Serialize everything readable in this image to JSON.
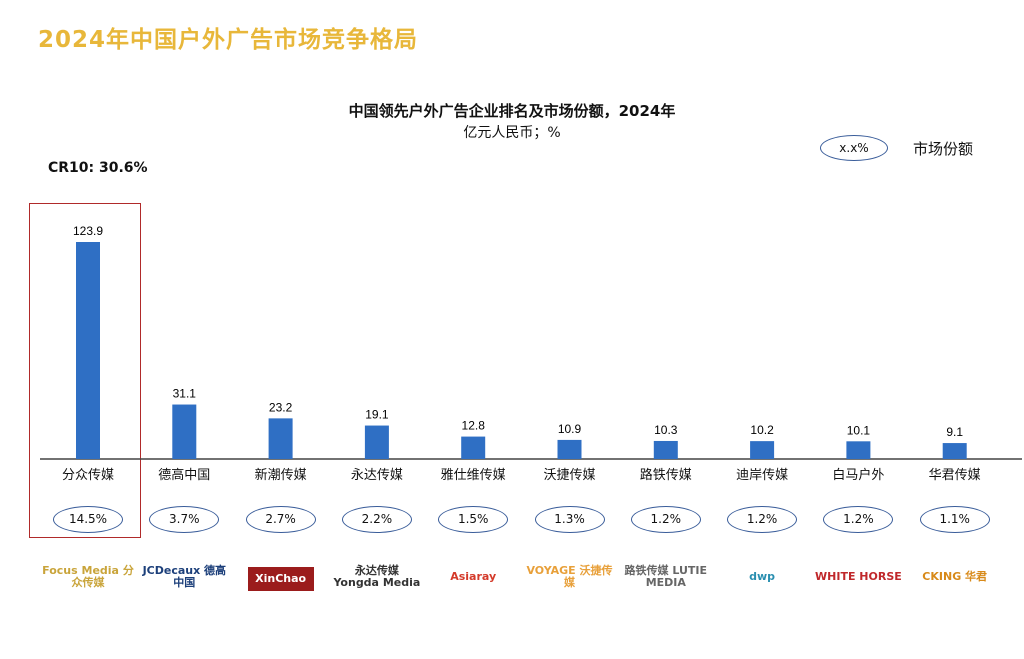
{
  "page_title": "2024年中国户外广告市场竞争格局",
  "legend": {
    "sample": "x.x%",
    "label": "市场份额"
  },
  "cr10": "CR10: 30.6%",
  "colors": {
    "bar": "#2f6fc4",
    "title": "#e8b73a",
    "highlight": "#b02a2a",
    "ellipse": "#3a5d9a"
  },
  "chart_data": {
    "type": "bar",
    "title": "中国领先户外广告企业排名及市场份额，2024年",
    "subtitle": "亿元人民币；%",
    "categories": [
      "分众传媒",
      "德高中国",
      "新潮传媒",
      "永达传媒",
      "雅仕维传媒",
      "沃捷传媒",
      "路铁传媒",
      "迪岸传媒",
      "白马户外",
      "华君传媒"
    ],
    "values": [
      123.9,
      31.1,
      23.2,
      19.1,
      12.8,
      10.9,
      10.3,
      10.2,
      10.1,
      9.1
    ],
    "value_labels": [
      "123.9",
      "31.1",
      "23.2",
      "19.1",
      "12.8",
      "10.9",
      "10.3",
      "10.2",
      "10.1",
      "9.1"
    ],
    "market_share": [
      "14.5%",
      "3.7%",
      "2.7%",
      "2.2%",
      "1.5%",
      "1.3%",
      "1.2%",
      "1.2%",
      "1.2%",
      "1.1%"
    ],
    "highlighted_category": "分众传媒",
    "grid": false
  },
  "logos": [
    "Focus Media 分众传媒",
    "JCDecaux 德高中国",
    "XinChao",
    "永达传媒 Yongda Media",
    "Asiaray",
    "VOYAGE 沃捷传媒",
    "路铁传媒 LUTIE MEDIA",
    "dwp",
    "WHITE HORSE",
    "CKING 华君"
  ]
}
